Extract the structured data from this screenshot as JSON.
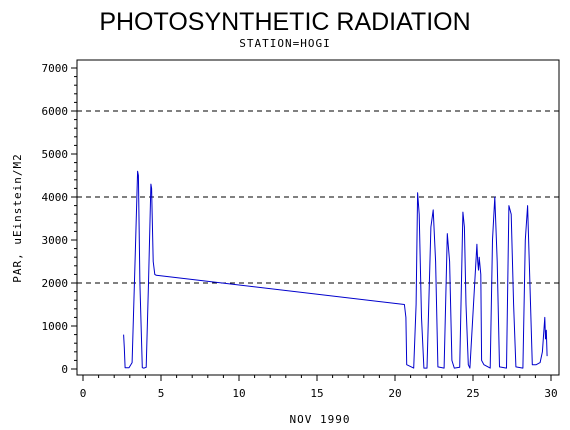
{
  "chart_data": {
    "type": "line",
    "title": "PHOTOSYNTHETIC RADIATION",
    "subtitle": "STATION=HOGI",
    "xlabel": "NOV 1990",
    "ylabel": "PAR, uEinstein/M2",
    "xlim": [
      0,
      30
    ],
    "ylim": [
      0,
      7000
    ],
    "x_ticks": [
      0,
      5,
      10,
      15,
      20,
      25,
      30
    ],
    "y_ticks": [
      0,
      1000,
      2000,
      3000,
      4000,
      5000,
      6000,
      7000
    ],
    "reference_lines": [
      2000,
      4000,
      6000
    ],
    "line_color": "#0000cc",
    "series": [
      {
        "x": [
          2.6,
          2.65,
          2.7,
          2.95,
          3.15,
          3.35,
          3.5,
          3.55,
          3.65,
          3.8,
          3.9,
          4.05,
          4.2,
          4.35,
          4.4,
          4.5,
          4.6,
          4.7,
          20.6,
          20.7,
          20.75,
          21.2,
          21.35,
          21.45,
          21.55,
          21.7,
          21.85,
          22.05,
          22.3,
          22.45,
          22.6,
          22.75,
          23.15,
          23.35,
          23.5,
          23.65,
          23.8,
          24.15,
          24.35,
          24.45,
          24.55,
          24.7,
          24.8,
          25.25,
          25.3,
          25.35,
          25.4,
          25.45,
          25.5,
          25.55,
          25.7,
          26.1,
          26.25,
          26.4,
          26.55,
          26.7,
          27.15,
          27.3,
          27.45,
          27.6,
          27.75,
          28.2,
          28.35,
          28.5,
          28.65,
          28.8,
          29.05,
          29.3,
          29.45,
          29.6,
          29.65,
          29.7,
          29.75
        ],
        "y": [
          800,
          500,
          30,
          30,
          150,
          2700,
          4600,
          4500,
          2000,
          30,
          20,
          40,
          2000,
          4300,
          4200,
          2500,
          2200,
          2180,
          1500,
          1200,
          100,
          20,
          1500,
          4100,
          3600,
          1200,
          20,
          20,
          3300,
          3700,
          2500,
          50,
          20,
          3150,
          2500,
          200,
          20,
          40,
          3650,
          3300,
          1500,
          100,
          20,
          2900,
          2500,
          2300,
          2600,
          2400,
          2200,
          200,
          100,
          20,
          3000,
          4000,
          2500,
          50,
          20,
          3800,
          3600,
          1500,
          50,
          20,
          3000,
          3800,
          2000,
          100,
          100,
          150,
          400,
          1200,
          700,
          900,
          300
        ]
      }
    ]
  }
}
